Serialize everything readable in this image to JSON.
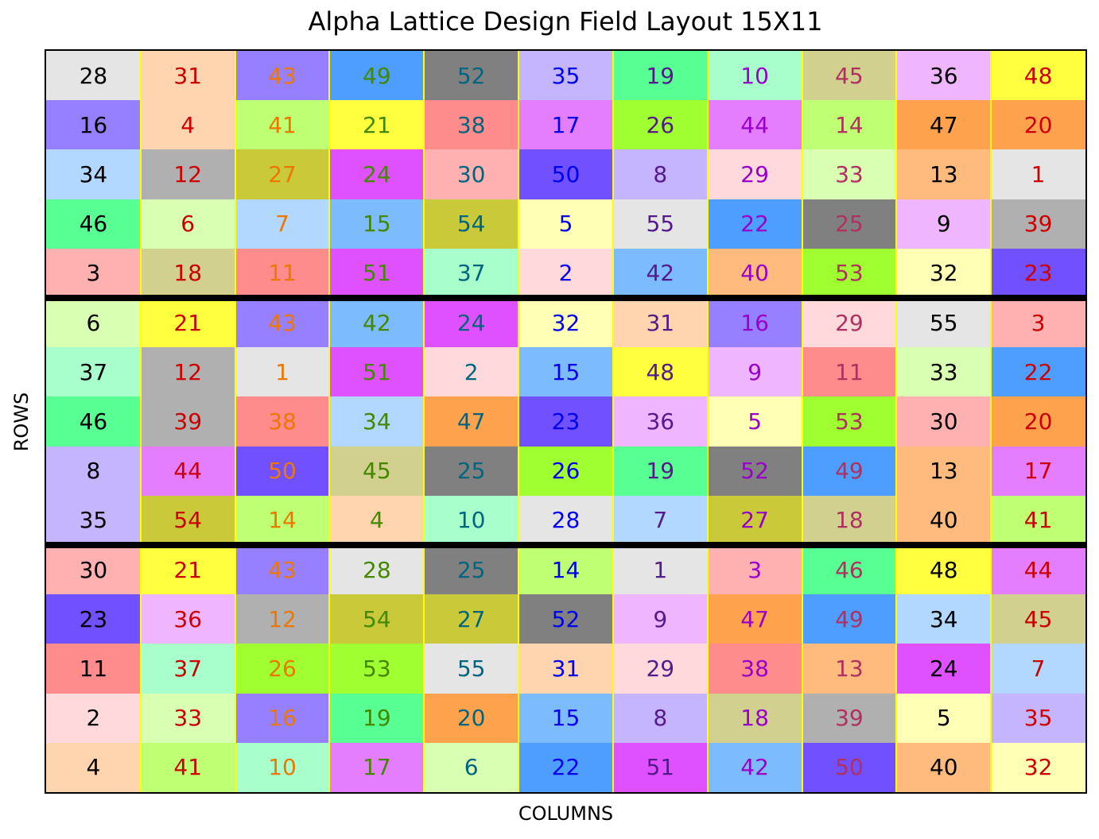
{
  "chart_data": {
    "type": "heatmap",
    "title": "Alpha Lattice Design Field Layout 15X11",
    "xlabel": "COLUMNS",
    "ylabel": "ROWS",
    "n_rows": 15,
    "n_cols": 11,
    "block_boundaries_after_rows": [
      5,
      10
    ],
    "column_text_colors": [
      "#000000",
      "#cc0000",
      "#ee7700",
      "#448800",
      "#006680",
      "#0000ee",
      "#551a8b",
      "#9900cc",
      "#b03060",
      "#000000",
      "#cc0000"
    ],
    "values": [
      [
        28,
        31,
        43,
        49,
        52,
        35,
        19,
        10,
        45,
        36,
        48
      ],
      [
        16,
        4,
        41,
        21,
        38,
        17,
        26,
        44,
        14,
        47,
        20
      ],
      [
        34,
        12,
        27,
        24,
        30,
        50,
        8,
        29,
        33,
        13,
        1
      ],
      [
        46,
        6,
        7,
        15,
        54,
        5,
        55,
        22,
        25,
        9,
        39
      ],
      [
        3,
        18,
        11,
        51,
        37,
        2,
        42,
        40,
        53,
        32,
        23
      ],
      [
        6,
        21,
        43,
        42,
        24,
        32,
        31,
        16,
        29,
        55,
        3
      ],
      [
        37,
        12,
        1,
        51,
        2,
        15,
        48,
        9,
        11,
        33,
        22
      ],
      [
        46,
        39,
        38,
        34,
        47,
        23,
        36,
        5,
        53,
        30,
        20
      ],
      [
        8,
        44,
        50,
        45,
        25,
        26,
        19,
        52,
        49,
        13,
        17
      ],
      [
        35,
        54,
        14,
        4,
        10,
        28,
        7,
        27,
        18,
        40,
        41
      ],
      [
        30,
        21,
        43,
        28,
        25,
        14,
        1,
        3,
        46,
        48,
        44
      ],
      [
        23,
        36,
        12,
        54,
        27,
        52,
        9,
        47,
        49,
        34,
        45
      ],
      [
        11,
        37,
        26,
        53,
        55,
        31,
        29,
        38,
        13,
        24,
        7
      ],
      [
        2,
        33,
        16,
        19,
        20,
        15,
        8,
        18,
        39,
        5,
        35
      ],
      [
        4,
        41,
        10,
        17,
        6,
        22,
        51,
        42,
        50,
        40,
        32
      ]
    ],
    "treatment_colors": {
      "1": "#e5e5e5",
      "2": "#ffd9dc",
      "3": "#ffb0b0",
      "4": "#ffd5b0",
      "5": "#ffffb5",
      "6": "#d8ffb2",
      "7": "#b2d8ff",
      "8": "#c5b5ff",
      "9": "#f0b5ff",
      "10": "#a8ffcc",
      "11": "#ff8c8c",
      "12": "#b0b0b0",
      "13": "#ffbb7d",
      "14": "#bfff73",
      "15": "#7dbbff",
      "16": "#9680ff",
      "17": "#e57dff",
      "18": "#d2d08f",
      "19": "#58ff92",
      "20": "#ffa24d",
      "21": "#ffff40",
      "22": "#4d9eff",
      "23": "#7050ff",
      "24": "#df50ff",
      "25": "#808080",
      "26": "#a0ff30",
      "27": "#c9c93a",
      "28": "#e5e5e5",
      "29": "#ffd9dc",
      "30": "#ffb0b0",
      "31": "#ffd5b0",
      "32": "#ffffb5",
      "33": "#d8ffb2",
      "34": "#b2d8ff",
      "35": "#c5b5ff",
      "36": "#f0b5ff",
      "37": "#a8ffcc",
      "38": "#ff8c8c",
      "39": "#b0b0b0",
      "40": "#ffbb7d",
      "41": "#bfff73",
      "42": "#7dbbff",
      "43": "#9680ff",
      "44": "#e57dff",
      "45": "#d2d08f",
      "46": "#58ff92",
      "47": "#ffa24d",
      "48": "#ffff40",
      "49": "#4d9eff",
      "50": "#7050ff",
      "51": "#df50ff",
      "52": "#808080",
      "53": "#a0ff30",
      "54": "#c9c93a",
      "55": "#e5e5e5"
    }
  }
}
